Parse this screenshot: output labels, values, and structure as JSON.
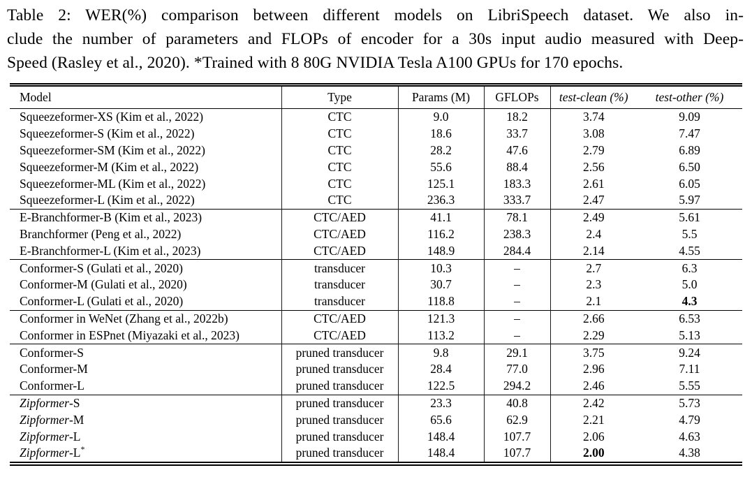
{
  "caption": {
    "lines": [
      "Table 2: WER(%) comparison between different models on LibriSpeech dataset. We also in-",
      "clude the number of parameters and FLOPs of encoder for a 30s input audio measured with Deep-",
      "Speed (Rasley et al., 2020). *Trained with 8 80G NVIDIA Tesla A100 GPUs for 170 epochs."
    ]
  },
  "table": {
    "columns": [
      "Model",
      "Type",
      "Params (M)",
      "GFLOPs",
      "test-clean (%)",
      "test-other (%)"
    ],
    "missing_value": "–",
    "groups": [
      {
        "rows": [
          {
            "model": "Squeezeformer-XS (Kim et al., 2022)",
            "type": "CTC",
            "params": "9.0",
            "gflops": "18.2",
            "clean": "3.74",
            "other": "9.09"
          },
          {
            "model": "Squeezeformer-S (Kim et al., 2022)",
            "type": "CTC",
            "params": "18.6",
            "gflops": "33.7",
            "clean": "3.08",
            "other": "7.47"
          },
          {
            "model": "Squeezeformer-SM (Kim et al., 2022)",
            "type": "CTC",
            "params": "28.2",
            "gflops": "47.6",
            "clean": "2.79",
            "other": "6.89"
          },
          {
            "model": "Squeezeformer-M (Kim et al., 2022)",
            "type": "CTC",
            "params": "55.6",
            "gflops": "88.4",
            "clean": "2.56",
            "other": "6.50"
          },
          {
            "model": "Squeezeformer-ML (Kim et al., 2022)",
            "type": "CTC",
            "params": "125.1",
            "gflops": "183.3",
            "clean": "2.61",
            "other": "6.05"
          },
          {
            "model": "Squeezeformer-L (Kim et al., 2022)",
            "type": "CTC",
            "params": "236.3",
            "gflops": "333.7",
            "clean": "2.47",
            "other": "5.97"
          }
        ]
      },
      {
        "rows": [
          {
            "model": "E-Branchformer-B (Kim et al., 2023)",
            "type": "CTC/AED",
            "params": "41.1",
            "gflops": "78.1",
            "clean": "2.49",
            "other": "5.61"
          },
          {
            "model": "Branchformer (Peng et al., 2022)",
            "type": "CTC/AED",
            "params": "116.2",
            "gflops": "238.3",
            "clean": "2.4",
            "other": "5.5"
          },
          {
            "model": "E-Branchformer-L (Kim et al., 2023)",
            "type": "CTC/AED",
            "params": "148.9",
            "gflops": "284.4",
            "clean": "2.14",
            "other": "4.55"
          }
        ]
      },
      {
        "rows": [
          {
            "model": "Conformer-S (Gulati et al., 2020)",
            "type": "transducer",
            "params": "10.3",
            "gflops": "–",
            "clean": "2.7",
            "other": "6.3"
          },
          {
            "model": "Conformer-M (Gulati et al., 2020)",
            "type": "transducer",
            "params": "30.7",
            "gflops": "–",
            "clean": "2.3",
            "other": "5.0"
          },
          {
            "model": "Conformer-L (Gulati et al., 2020)",
            "type": "transducer",
            "params": "118.8",
            "gflops": "–",
            "clean": "2.1",
            "other": "4.3",
            "bold": "other"
          }
        ]
      },
      {
        "rows": [
          {
            "model": "Conformer in WeNet (Zhang et al., 2022b)",
            "type": "CTC/AED",
            "params": "121.3",
            "gflops": "–",
            "clean": "2.66",
            "other": "6.53"
          },
          {
            "model": "Conformer in ESPnet (Miyazaki et al., 2023)",
            "type": "CTC/AED",
            "params": "113.2",
            "gflops": "–",
            "clean": "2.29",
            "other": "5.13"
          }
        ]
      },
      {
        "rows": [
          {
            "model": "Conformer-S",
            "type": "pruned transducer",
            "params": "9.8",
            "gflops": "29.1",
            "clean": "3.75",
            "other": "9.24"
          },
          {
            "model": "Conformer-M",
            "type": "pruned transducer",
            "params": "28.4",
            "gflops": "77.0",
            "clean": "2.96",
            "other": "7.11"
          },
          {
            "model": "Conformer-L",
            "type": "pruned transducer",
            "params": "122.5",
            "gflops": "294.2",
            "clean": "2.46",
            "other": "5.55"
          }
        ]
      },
      {
        "rows": [
          {
            "model_italic": "Zipformer",
            "model": "-S",
            "type": "pruned transducer",
            "params": "23.3",
            "gflops": "40.8",
            "clean": "2.42",
            "other": "5.73"
          },
          {
            "model_italic": "Zipformer",
            "model": "-M",
            "type": "pruned transducer",
            "params": "65.6",
            "gflops": "62.9",
            "clean": "2.21",
            "other": "4.79"
          },
          {
            "model_italic": "Zipformer",
            "model": "-L",
            "type": "pruned transducer",
            "params": "148.4",
            "gflops": "107.7",
            "clean": "2.06",
            "other": "4.63"
          },
          {
            "model_italic": "Zipformer",
            "model": "-L",
            "model_sup": "*",
            "type": "pruned transducer",
            "params": "148.4",
            "gflops": "107.7",
            "clean": "2.00",
            "other": "4.38",
            "bold": "clean"
          }
        ]
      }
    ]
  }
}
